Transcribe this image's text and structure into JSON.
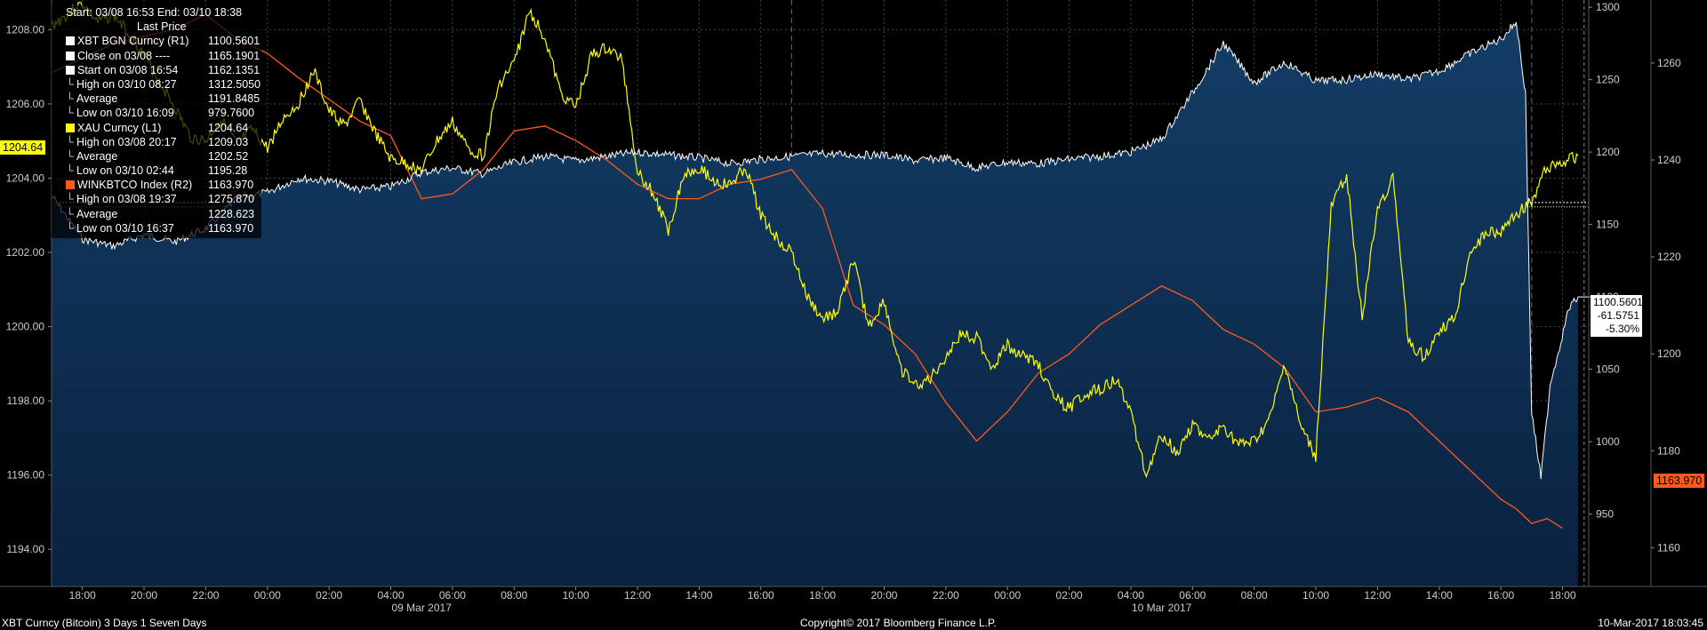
{
  "legend": {
    "range": "Start: 03/08 16:53 End: 03/10 18:38",
    "header": "Last Price",
    "rows": [
      {
        "label": "XBT BGN Curncy  (R1)",
        "value": "1100.5601",
        "swatch": "#ffffff"
      },
      {
        "label": "Close on 03/08 ----",
        "value": "1165.1901",
        "swatch": "#ffffff"
      },
      {
        "label": "Start on 03/08 16:54",
        "value": "1162.1351",
        "swatch": "#ffffff"
      },
      {
        "label": "High on 03/10 08:27",
        "value": "1312.5050",
        "swatch": ""
      },
      {
        "label": "Average",
        "value": "1191.8485",
        "swatch": ""
      },
      {
        "label": "Low on 03/10 16:09",
        "value": "979.7600",
        "swatch": ""
      },
      {
        "label": "XAU Curncy  (L1)",
        "value": "1204.64",
        "swatch": "#ffff00"
      },
      {
        "label": "High on 03/08 20:17",
        "value": "1209.03",
        "swatch": ""
      },
      {
        "label": "Average",
        "value": "1202.52",
        "swatch": ""
      },
      {
        "label": "Low on 03/10 02:44",
        "value": "1195.28",
        "swatch": ""
      },
      {
        "label": "WINKBTCO Index  (R2)",
        "value": "1163.970",
        "swatch": "#ff5a1a"
      },
      {
        "label": "High on 03/08 19:37",
        "value": "1275.870",
        "swatch": ""
      },
      {
        "label": "Average",
        "value": "1228.623",
        "swatch": ""
      },
      {
        "label": "Low on 03/10 16:37",
        "value": "1163.970",
        "swatch": ""
      }
    ]
  },
  "tags": {
    "xau_last": "1204.64",
    "xbt_last": "1100.5601",
    "xbt_change": "-61.5751",
    "xbt_pct": "-5.30%",
    "wink_last": "1163.970"
  },
  "footer": {
    "left": "XBT Curncy (Bitcoin) 3 Days 1 Seven Days",
    "center": "Copyright© 2017 Bloomberg Finance L.P.",
    "right": "10-Mar-2017 18:03:45"
  },
  "colors": {
    "gold": "#ffff00",
    "xbt": "#ffffff",
    "wink": "#ff5a1a",
    "area_top": "#123a62",
    "area_bottom": "#0b2440",
    "axis_text": "#cccccc"
  },
  "chart_data": {
    "type": "line",
    "x_labels": [
      "18:00",
      "20:00",
      "22:00",
      "00:00",
      "02:00",
      "04:00",
      "06:00",
      "08:00",
      "10:00",
      "12:00",
      "14:00",
      "16:00",
      "18:00",
      "20:00",
      "22:00",
      "00:00",
      "02:00",
      "04:00",
      "06:00",
      "08:00",
      "10:00",
      "12:00",
      "14:00",
      "16:00",
      "18:00"
    ],
    "date_labels": [
      "09 Mar 2017",
      "10 Mar 2017"
    ],
    "left_axis": {
      "ticks": [
        "1194.00",
        "1196.00",
        "1198.00",
        "1200.00",
        "1202.00",
        "1204.00",
        "1206.00",
        "1208.00"
      ],
      "ylim": [
        1193,
        1208.8
      ]
    },
    "right_axis_1": {
      "ticks": [
        "950",
        "1000",
        "1050",
        "1100",
        "1150",
        "1200",
        "1250",
        "1300"
      ],
      "ylim": [
        900,
        1305
      ]
    },
    "right_axis_2": {
      "ticks": [
        "1160",
        "1180",
        "1200",
        "1220",
        "1240",
        "1260"
      ],
      "ylim": [
        1152,
        1273
      ]
    },
    "series": [
      {
        "name": "XAU Curncy",
        "axis": "left",
        "x": [
          0,
          0.5,
          1,
          1.5,
          2,
          2.5,
          3,
          3.5,
          4,
          4.5,
          5,
          5.5,
          6,
          6.5,
          7,
          7.5,
          8,
          8.5,
          9,
          9.5,
          10,
          10.5,
          11,
          11.5,
          12,
          12.5,
          13,
          13.5,
          14,
          14.5,
          15,
          15.5,
          16,
          16.5,
          17,
          17.5,
          18,
          18.5,
          19,
          19.5,
          20,
          20.5,
          21,
          21.5,
          22,
          22.5,
          23,
          23.5,
          24,
          24.5,
          25,
          25.5,
          26,
          26.5,
          27,
          27.5,
          28,
          28.5,
          29,
          29.5,
          30,
          30.5,
          31,
          31.5,
          32,
          32.5,
          33,
          33.5,
          34,
          34.5,
          35,
          35.5,
          36,
          36.5,
          37,
          37.5,
          38,
          38.5,
          39,
          39.5,
          40,
          40.5,
          41,
          41.5,
          42,
          42.5,
          43,
          43.5,
          44,
          44.5,
          45,
          45.5,
          46,
          46.5,
          47,
          47.5,
          48,
          48.5,
          49,
          49.5
        ],
        "values": [
          1208.1,
          1208.4,
          1208.7,
          1208.2,
          1208.4,
          1207.9,
          1207.3,
          1206.6,
          1205.9,
          1205.1,
          1205.0,
          1205.6,
          1204.9,
          1205.3,
          1204.8,
          1205.6,
          1206.0,
          1206.9,
          1205.8,
          1205.4,
          1206.1,
          1205.2,
          1204.5,
          1204.4,
          1204.2,
          1205.0,
          1205.5,
          1204.8,
          1204.6,
          1206.5,
          1207.1,
          1208.5,
          1207.8,
          1206.3,
          1205.9,
          1207.3,
          1207.5,
          1207.2,
          1204.2,
          1203.6,
          1202.6,
          1204.1,
          1204.3,
          1203.9,
          1203.8,
          1204.3,
          1203.0,
          1202.4,
          1202.0,
          1200.8,
          1200.2,
          1200.4,
          1201.8,
          1200.0,
          1200.7,
          1198.9,
          1198.4,
          1198.6,
          1199.2,
          1199.8,
          1199.7,
          1198.9,
          1199.5,
          1199.2,
          1199.0,
          1198.1,
          1197.8,
          1198.2,
          1198.3,
          1198.6,
          1197.7,
          1196.0,
          1197.1,
          1196.6,
          1197.4,
          1196.9,
          1197.3,
          1196.8,
          1196.9,
          1197.5,
          1199.0,
          1197.3,
          1196.5,
          1203.2,
          1204.1,
          1200.2,
          1203.2,
          1204.0,
          1199.6,
          1199.2,
          1199.9,
          1200.2,
          1202.0,
          1202.5,
          1202.6,
          1203.0,
          1203.4,
          1204.3,
          1204.4,
          1204.6
        ]
      },
      {
        "name": "XBT BGN Curncy",
        "axis": "right1",
        "x": [
          0,
          1,
          2,
          3,
          4,
          5,
          6,
          7,
          8,
          9,
          10,
          11,
          12,
          13,
          14,
          15,
          16,
          17,
          18,
          19,
          20,
          21,
          22,
          23,
          24,
          25,
          26,
          27,
          28,
          29,
          30,
          31,
          32,
          33,
          34,
          35,
          36,
          37,
          38,
          39,
          40,
          41,
          42,
          43,
          44,
          45,
          46,
          47,
          47.5,
          47.8,
          48,
          48.3,
          48.6,
          48.9,
          49.2,
          49.5
        ],
        "values": [
          1170,
          1140,
          1135,
          1143,
          1138,
          1147,
          1168,
          1172,
          1182,
          1180,
          1174,
          1176,
          1186,
          1189,
          1185,
          1193,
          1197,
          1194,
          1197,
          1200,
          1198,
          1196,
          1192,
          1195,
          1197,
          1199,
          1198,
          1198,
          1194,
          1196,
          1189,
          1193,
          1192,
          1195,
          1197,
          1200,
          1209,
          1241,
          1275,
          1248,
          1262,
          1249,
          1250,
          1254,
          1250,
          1256,
          1268,
          1278,
          1290,
          1240,
          1020,
          975,
          1040,
          1065,
          1092,
          1100
        ]
      },
      {
        "name": "WINKBTCO Index",
        "axis": "right2",
        "x": [
          0,
          2,
          4,
          5,
          6,
          7,
          8,
          10,
          11,
          12,
          13,
          14,
          15,
          16,
          17,
          18,
          19,
          20,
          21,
          22,
          23,
          24,
          25,
          26,
          27,
          28,
          29,
          30,
          31,
          32,
          33,
          34,
          35,
          36,
          37,
          38,
          39,
          40,
          41,
          42,
          43,
          44,
          45,
          46,
          47,
          47.5,
          48,
          48.5,
          49
        ],
        "values": [
          1258,
          1264,
          1267,
          1270,
          1265,
          1262,
          1257,
          1248,
          1245,
          1232,
          1233,
          1238,
          1246,
          1247,
          1244,
          1240,
          1235,
          1232,
          1232,
          1235,
          1236,
          1238,
          1230,
          1210,
          1206,
          1200,
          1190,
          1182,
          1188,
          1196,
          1200,
          1206,
          1210,
          1214,
          1211,
          1205,
          1202,
          1197,
          1188,
          1189,
          1191,
          1188,
          1182,
          1176,
          1170,
          1168,
          1165,
          1166,
          1164
        ]
      }
    ]
  }
}
